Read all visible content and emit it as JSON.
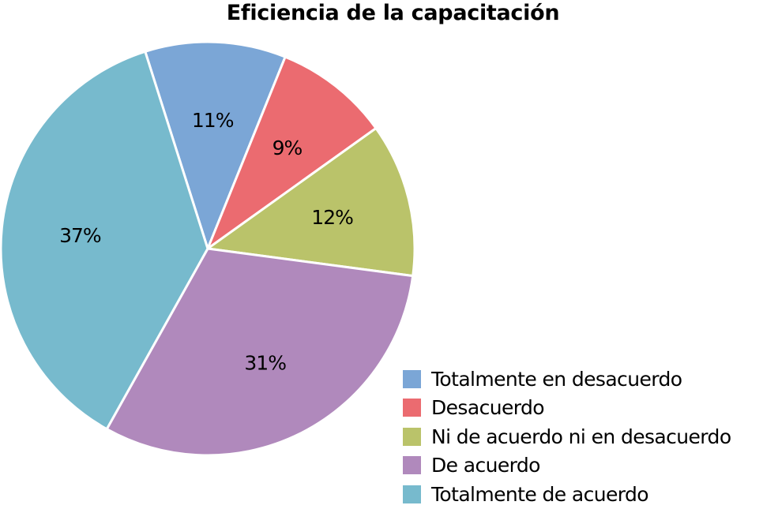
{
  "chart_data": {
    "type": "pie",
    "title": "Eficiencia de la capacitación",
    "legend_position": "bottom-right",
    "slices": [
      {
        "name": "Totalmente en desacuerdo",
        "value": 11,
        "label": "11%",
        "color": "#7BA6D6"
      },
      {
        "name": "Desacuerdo",
        "value": 9,
        "label": "9%",
        "color": "#EB6B70"
      },
      {
        "name": "Ni de acuerdo ni en desacuerdo",
        "value": 12,
        "label": "12%",
        "color": "#BAC36A"
      },
      {
        "name": "De acuerdo",
        "value": 31,
        "label": "31%",
        "color": "#B089BC"
      },
      {
        "name": "Totalmente de acuerdo",
        "value": 37,
        "label": "37%",
        "color": "#77BACD"
      }
    ]
  }
}
